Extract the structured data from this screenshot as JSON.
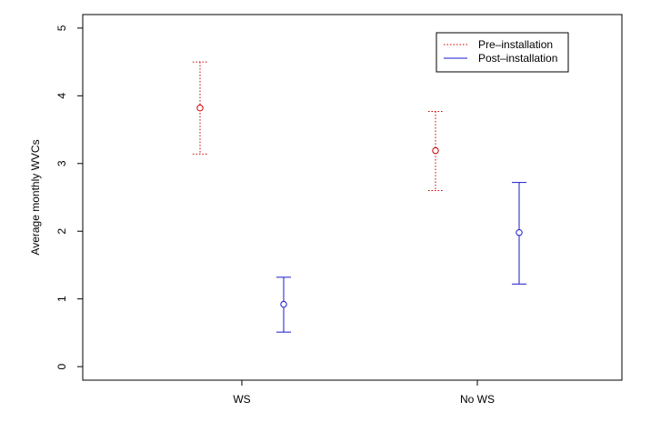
{
  "chart_data": {
    "type": "scatter",
    "subtype": "error-bar",
    "title": "",
    "xlabel": "",
    "ylabel": "Average monthly WVCs",
    "ylim": [
      -0.2,
      5.2
    ],
    "y_ticks": [
      0,
      1,
      2,
      3,
      4,
      5
    ],
    "y_tick_labels": [
      "0",
      "1",
      "2",
      "3",
      "4",
      "5"
    ],
    "categories": [
      "WS",
      "No WS"
    ],
    "grid": false,
    "legend_position": "top-right",
    "series": [
      {
        "name": "Pre–installation",
        "color": "#cc0000",
        "line_style": "dotted",
        "marker": "open-circle",
        "points": [
          {
            "category": "WS",
            "mean": 3.82,
            "lower": 3.14,
            "upper": 4.5
          },
          {
            "category": "No WS",
            "mean": 3.19,
            "lower": 2.6,
            "upper": 3.77
          }
        ]
      },
      {
        "name": "Post–installation",
        "color": "#1a1acc",
        "line_style": "solid",
        "marker": "open-circle",
        "points": [
          {
            "category": "WS",
            "mean": 0.92,
            "lower": 0.51,
            "upper": 1.32
          },
          {
            "category": "No WS",
            "mean": 1.98,
            "lower": 1.22,
            "upper": 2.72
          }
        ]
      }
    ]
  }
}
